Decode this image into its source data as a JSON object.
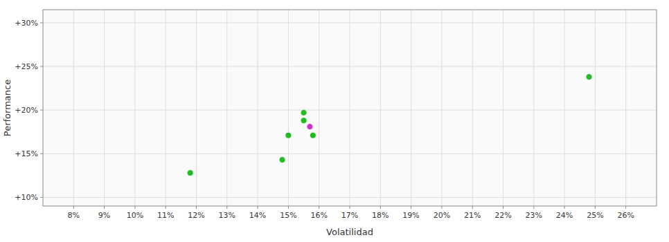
{
  "chart_data": {
    "type": "scatter",
    "xlabel": "Volatilidad",
    "ylabel": "Performance",
    "xlim": [
      0.07,
      0.27
    ],
    "ylim": [
      0.09,
      0.315
    ],
    "xticks": [
      {
        "value": 0.08,
        "label": "8%"
      },
      {
        "value": 0.09,
        "label": "9%"
      },
      {
        "value": 0.1,
        "label": "10%"
      },
      {
        "value": 0.11,
        "label": "11%"
      },
      {
        "value": 0.12,
        "label": "12%"
      },
      {
        "value": 0.13,
        "label": "13%"
      },
      {
        "value": 0.14,
        "label": "14%"
      },
      {
        "value": 0.15,
        "label": "15%"
      },
      {
        "value": 0.16,
        "label": "16%"
      },
      {
        "value": 0.17,
        "label": "17%"
      },
      {
        "value": 0.18,
        "label": "18%"
      },
      {
        "value": 0.19,
        "label": "19%"
      },
      {
        "value": 0.2,
        "label": "20%"
      },
      {
        "value": 0.21,
        "label": "21%"
      },
      {
        "value": 0.22,
        "label": "22%"
      },
      {
        "value": 0.23,
        "label": "23%"
      },
      {
        "value": 0.24,
        "label": "24%"
      },
      {
        "value": 0.25,
        "label": "25%"
      },
      {
        "value": 0.26,
        "label": "26%"
      }
    ],
    "yticks": [
      {
        "value": 0.1,
        "label": "+10%"
      },
      {
        "value": 0.15,
        "label": "+15%"
      },
      {
        "value": 0.2,
        "label": "+20%"
      },
      {
        "value": 0.25,
        "label": "+25%"
      },
      {
        "value": 0.3,
        "label": "+30%"
      }
    ],
    "grid": true,
    "series": [
      {
        "color": "#22bb22",
        "x": [
          0.118,
          0.148,
          0.15,
          0.158,
          0.155,
          0.155,
          0.248
        ],
        "values": [
          0.128,
          0.143,
          0.171,
          0.171,
          0.188,
          0.197,
          0.238
        ]
      },
      {
        "color": "#cc33cc",
        "x": [
          0.157
        ],
        "values": [
          0.181
        ]
      }
    ]
  }
}
